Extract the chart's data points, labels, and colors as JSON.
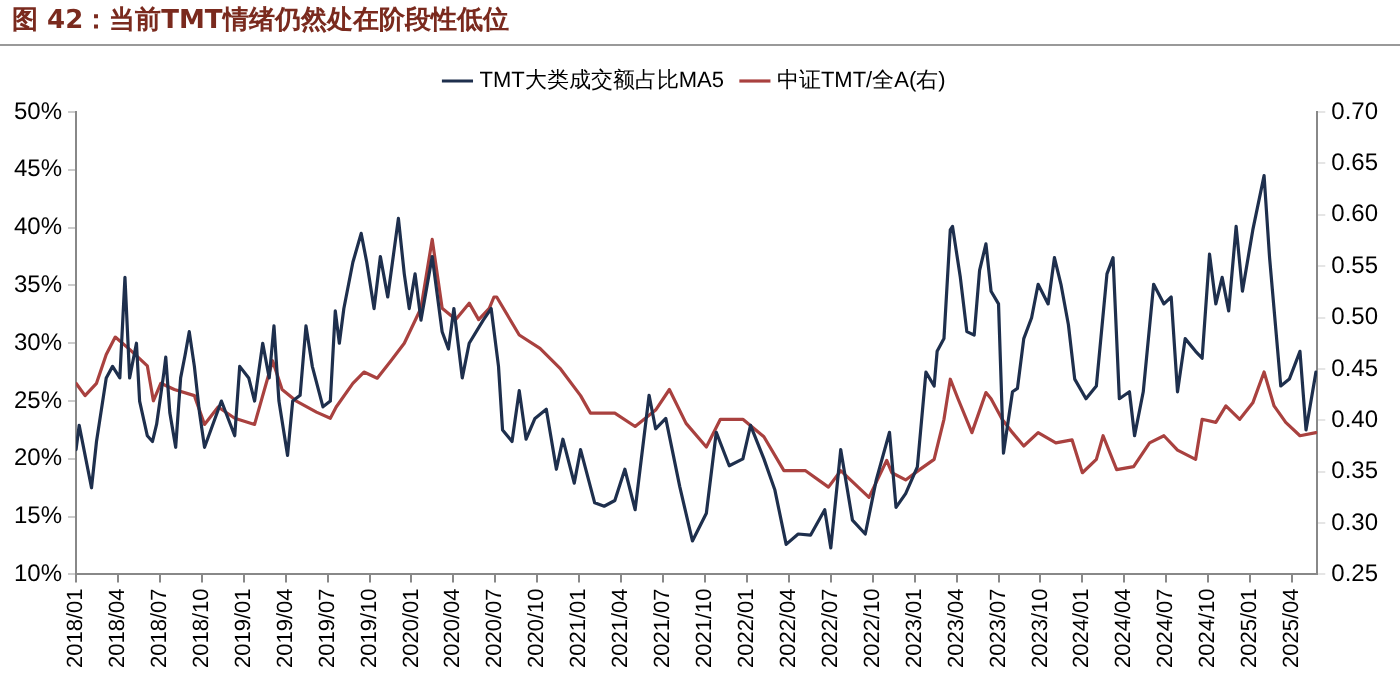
{
  "chart_data": {
    "type": "line",
    "title": "图 42：当前TMT情绪仍然处在阶段性低位",
    "legend": "top",
    "marker": "none",
    "line_style": "solid",
    "xlim": [
      "2018-01-01",
      "2025-05-26"
    ],
    "xticks": [
      {
        "value": "2018-01",
        "label": "2018/01"
      },
      {
        "value": "2018-04",
        "label": "2018/04"
      },
      {
        "value": "2018-07",
        "label": "2018/07"
      },
      {
        "value": "2018-10",
        "label": "2018/10"
      },
      {
        "value": "2019-01",
        "label": "2019/01"
      },
      {
        "value": "2019-04",
        "label": "2019/04"
      },
      {
        "value": "2019-07",
        "label": "2019/07"
      },
      {
        "value": "2019-10",
        "label": "2019/10"
      },
      {
        "value": "2020-01",
        "label": "2020/01"
      },
      {
        "value": "2020-04",
        "label": "2020/04"
      },
      {
        "value": "2020-07",
        "label": "2020/07"
      },
      {
        "value": "2020-10",
        "label": "2020/10"
      },
      {
        "value": "2021-01",
        "label": "2021/01"
      },
      {
        "value": "2021-04",
        "label": "2021/04"
      },
      {
        "value": "2021-07",
        "label": "2021/07"
      },
      {
        "value": "2021-10",
        "label": "2021/10"
      },
      {
        "value": "2022-01",
        "label": "2022/01"
      },
      {
        "value": "2022-04",
        "label": "2022/04"
      },
      {
        "value": "2022-07",
        "label": "2022/07"
      },
      {
        "value": "2022-10",
        "label": "2022/10"
      },
      {
        "value": "2023-01",
        "label": "2023/01"
      },
      {
        "value": "2023-04",
        "label": "2023/04"
      },
      {
        "value": "2023-07",
        "label": "2023/07"
      },
      {
        "value": "2023-10",
        "label": "2023/10"
      },
      {
        "value": "2024-01",
        "label": "2024/01"
      },
      {
        "value": "2024-04",
        "label": "2024/04"
      },
      {
        "value": "2024-07",
        "label": "2024/07"
      },
      {
        "value": "2024-10",
        "label": "2024/10"
      },
      {
        "value": "2025-01",
        "label": "2025/01"
      },
      {
        "value": "2025-04",
        "label": "2025/04"
      }
    ],
    "ylim": [
      10,
      50
    ],
    "yticks": [
      {
        "value": 10,
        "label": "10%"
      },
      {
        "value": 15,
        "label": "15%"
      },
      {
        "value": 20,
        "label": "20%"
      },
      {
        "value": 25,
        "label": "25%"
      },
      {
        "value": 30,
        "label": "30%"
      },
      {
        "value": 35,
        "label": "35%"
      },
      {
        "value": 40,
        "label": "40%"
      },
      {
        "value": 45,
        "label": "45%"
      },
      {
        "value": 50,
        "label": "50%"
      }
    ],
    "y2lim": [
      0.25,
      0.7
    ],
    "y2ticks": [
      {
        "value": 0.25,
        "label": "0.25"
      },
      {
        "value": 0.3,
        "label": "0.30"
      },
      {
        "value": 0.35,
        "label": "0.35"
      },
      {
        "value": 0.4,
        "label": "0.40"
      },
      {
        "value": 0.45,
        "label": "0.45"
      },
      {
        "value": 0.5,
        "label": "0.50"
      },
      {
        "value": 0.55,
        "label": "0.55"
      },
      {
        "value": 0.6,
        "label": "0.60"
      },
      {
        "value": 0.65,
        "label": "0.65"
      },
      {
        "value": 0.7,
        "label": "0.70"
      }
    ],
    "series": [
      {
        "name": "TMT大类成交额占比MA5",
        "color": "#1e2f4d",
        "x": [
          "2018-01-01",
          "2018-01-08",
          "2018-02-04",
          "2018-02-14",
          "2018-03-06",
          "2018-03-20",
          "2018-04-05",
          "2018-04-16",
          "2018-04-26",
          "2018-05-11",
          "2018-05-18",
          "2018-06-04",
          "2018-06-15",
          "2018-06-24",
          "2018-07-10",
          "2018-07-14",
          "2018-07-23",
          "2018-08-05",
          "2018-08-16",
          "2018-08-26",
          "2018-09-04",
          "2018-09-15",
          "2018-09-26",
          "2018-10-07",
          "2018-10-21",
          "2018-11-13",
          "2018-12-12",
          "2018-12-23",
          "2019-01-12",
          "2019-01-25",
          "2019-02-11",
          "2019-02-24",
          "2019-03-06",
          "2019-03-17",
          "2019-04-05",
          "2019-04-16",
          "2019-05-02",
          "2019-05-15",
          "2019-05-29",
          "2019-06-21",
          "2019-07-07",
          "2019-07-18",
          "2019-07-27",
          "2019-08-06",
          "2019-08-26",
          "2019-09-13",
          "2019-09-25",
          "2019-10-11",
          "2019-10-25",
          "2019-11-10",
          "2019-12-03",
          "2019-12-16",
          "2019-12-27",
          "2020-01-09",
          "2020-01-22",
          "2020-02-15",
          "2020-03-07",
          "2020-03-21",
          "2020-04-02",
          "2020-04-20",
          "2020-05-05",
          "2020-06-05",
          "2020-06-22",
          "2020-07-08",
          "2020-07-17",
          "2020-08-07",
          "2020-08-23",
          "2020-09-07",
          "2020-09-26",
          "2020-10-21",
          "2020-11-12",
          "2020-11-26",
          "2020-12-21",
          "2021-01-04",
          "2021-02-04",
          "2021-02-23",
          "2021-03-18",
          "2021-04-09",
          "2021-05-01",
          "2021-06-01",
          "2021-06-15",
          "2021-07-07",
          "2021-08-07",
          "2021-09-04",
          "2021-10-04",
          "2021-10-26",
          "2021-11-23",
          "2021-12-23",
          "2022-01-09",
          "2022-02-07",
          "2022-03-01",
          "2022-03-26",
          "2022-04-21",
          "2022-05-18",
          "2022-06-18",
          "2022-07-01",
          "2022-07-23",
          "2022-08-18",
          "2022-09-15",
          "2022-10-09",
          "2022-11-07",
          "2022-11-21",
          "2022-12-12",
          "2023-01-07",
          "2023-01-26",
          "2023-02-12",
          "2023-02-18",
          "2023-03-04",
          "2023-03-18",
          "2023-03-23",
          "2023-04-09",
          "2023-04-23",
          "2023-05-09",
          "2023-05-21",
          "2023-06-04",
          "2023-06-15",
          "2023-07-01",
          "2023-07-12",
          "2023-08-01",
          "2023-08-12",
          "2023-08-26",
          "2023-09-12",
          "2023-09-26",
          "2023-10-18",
          "2023-11-01",
          "2023-11-15",
          "2023-12-01",
          "2023-12-15",
          "2024-01-09",
          "2024-02-01",
          "2024-02-23",
          "2024-03-07",
          "2024-03-21",
          "2024-04-12",
          "2024-04-23",
          "2024-05-12",
          "2024-06-04",
          "2024-06-26",
          "2024-07-12",
          "2024-07-26",
          "2024-08-12",
          "2024-09-04",
          "2024-09-18",
          "2024-10-04",
          "2024-10-18",
          "2024-11-01",
          "2024-11-15",
          "2024-12-01",
          "2024-12-15",
          "2025-01-07",
          "2025-02-01",
          "2025-02-12",
          "2025-03-07",
          "2025-03-26",
          "2025-04-18",
          "2025-05-01",
          "2025-05-23"
        ],
        "values": [
          20.8,
          22.9,
          17.5,
          21.5,
          27,
          28,
          27,
          35.7,
          27,
          30,
          25,
          22,
          21.5,
          23,
          27.5,
          28.8,
          24,
          21,
          27,
          29,
          31,
          28,
          24,
          21,
          22.5,
          25,
          22,
          28,
          27,
          25,
          30,
          27,
          31.5,
          25,
          20.3,
          25,
          25.5,
          31.5,
          28,
          24.5,
          25,
          32.8,
          30,
          33,
          37,
          39.5,
          37,
          33,
          37.5,
          34,
          40.8,
          36,
          33,
          36,
          32,
          37.5,
          31,
          29.5,
          33,
          27,
          30,
          32,
          33,
          28,
          22.5,
          21.5,
          25.9,
          21.7,
          23.5,
          24.3,
          19.1,
          21.7,
          17.9,
          20.8,
          16.2,
          15.9,
          16.4,
          19.1,
          15.6,
          25.5,
          22.6,
          23.5,
          17.6,
          12.9,
          15.3,
          22.3,
          19.4,
          20,
          22.9,
          20,
          17.3,
          12.6,
          13.5,
          13.4,
          15.6,
          12.3,
          20.8,
          14.7,
          13.5,
          18.2,
          22.3,
          15.8,
          17,
          19.3,
          27.5,
          26.3,
          29.3,
          30.4,
          39.8,
          40.1,
          35.7,
          31,
          30.7,
          36.3,
          38.6,
          34.5,
          33.4,
          20.5,
          25.8,
          26.1,
          30.4,
          32.2,
          35.1,
          33.4,
          37.4,
          35.1,
          31.6,
          26.9,
          25.2,
          26.3,
          36,
          37.4,
          25.2,
          25.8,
          22,
          25.8,
          35.1,
          33.4,
          34,
          25.8,
          30.4,
          29.3,
          28.7,
          37.7,
          33.4,
          35.7,
          32.8,
          40.1,
          34.5,
          39.8,
          44.5,
          37.4,
          26.3,
          26.9,
          29.3,
          22.5,
          27.5
        ]
      },
      {
        "name": "中证TMT/全A(右)",
        "color": "#a9413f",
        "axis": "y2",
        "x": [
          "2018-01-01",
          "2018-01-21",
          "2018-02-14",
          "2018-03-06",
          "2018-03-26",
          "2018-04-26",
          "2018-06-04",
          "2018-06-17",
          "2018-07-03",
          "2018-08-02",
          "2018-09-15",
          "2018-10-07",
          "2018-11-06",
          "2018-12-12",
          "2019-01-25",
          "2019-03-03",
          "2019-03-24",
          "2019-04-23",
          "2019-06-07",
          "2019-07-07",
          "2019-07-20",
          "2019-08-26",
          "2019-09-19",
          "2019-10-18",
          "2019-11-17",
          "2019-12-16",
          "2020-01-22",
          "2020-02-15",
          "2020-03-07",
          "2020-04-06",
          "2020-05-05",
          "2020-05-26",
          "2020-06-18",
          "2020-06-28",
          "2020-07-04",
          "2020-08-23",
          "2020-10-07",
          "2020-11-21",
          "2021-01-04",
          "2021-01-26",
          "2021-03-18",
          "2021-05-01",
          "2021-06-15",
          "2021-07-15",
          "2021-08-21",
          "2021-10-04",
          "2021-11-04",
          "2021-12-23",
          "2022-02-07",
          "2022-03-21",
          "2022-05-07",
          "2022-06-26",
          "2022-07-23",
          "2022-09-23",
          "2022-11-01",
          "2022-11-12",
          "2022-12-12",
          "2023-01-12",
          "2023-02-12",
          "2023-03-04",
          "2023-03-18",
          "2023-04-04",
          "2023-05-04",
          "2023-06-04",
          "2023-06-15",
          "2023-07-09",
          "2023-08-01",
          "2023-08-26",
          "2023-09-26",
          "2023-11-04",
          "2023-12-09",
          "2024-01-01",
          "2024-02-01",
          "2024-02-15",
          "2024-03-15",
          "2024-04-21",
          "2024-05-26",
          "2024-06-26",
          "2024-07-26",
          "2024-09-04",
          "2024-09-18",
          "2024-10-18",
          "2024-11-09",
          "2024-12-09",
          "2025-01-07",
          "2025-02-01",
          "2025-02-21",
          "2025-03-18",
          "2025-04-18",
          "2025-05-23"
        ],
        "values": [
          0.436,
          0.424,
          0.436,
          0.464,
          0.481,
          0.469,
          0.453,
          0.419,
          0.436,
          0.43,
          0.424,
          0.396,
          0.413,
          0.402,
          0.396,
          0.458,
          0.43,
          0.419,
          0.408,
          0.402,
          0.413,
          0.436,
          0.447,
          0.441,
          0.458,
          0.475,
          0.509,
          0.576,
          0.509,
          0.498,
          0.514,
          0.498,
          0.509,
          0.52,
          0.52,
          0.483,
          0.47,
          0.45,
          0.424,
          0.407,
          0.407,
          0.394,
          0.41,
          0.43,
          0.397,
          0.374,
          0.401,
          0.401,
          0.384,
          0.351,
          0.351,
          0.335,
          0.351,
          0.325,
          0.361,
          0.349,
          0.342,
          0.352,
          0.362,
          0.401,
          0.44,
          0.421,
          0.388,
          0.427,
          0.421,
          0.401,
          0.388,
          0.375,
          0.388,
          0.378,
          0.381,
          0.349,
          0.362,
          0.385,
          0.352,
          0.355,
          0.378,
          0.385,
          0.371,
          0.362,
          0.401,
          0.398,
          0.414,
          0.401,
          0.417,
          0.447,
          0.414,
          0.398,
          0.385,
          0.388
        ]
      }
    ]
  }
}
